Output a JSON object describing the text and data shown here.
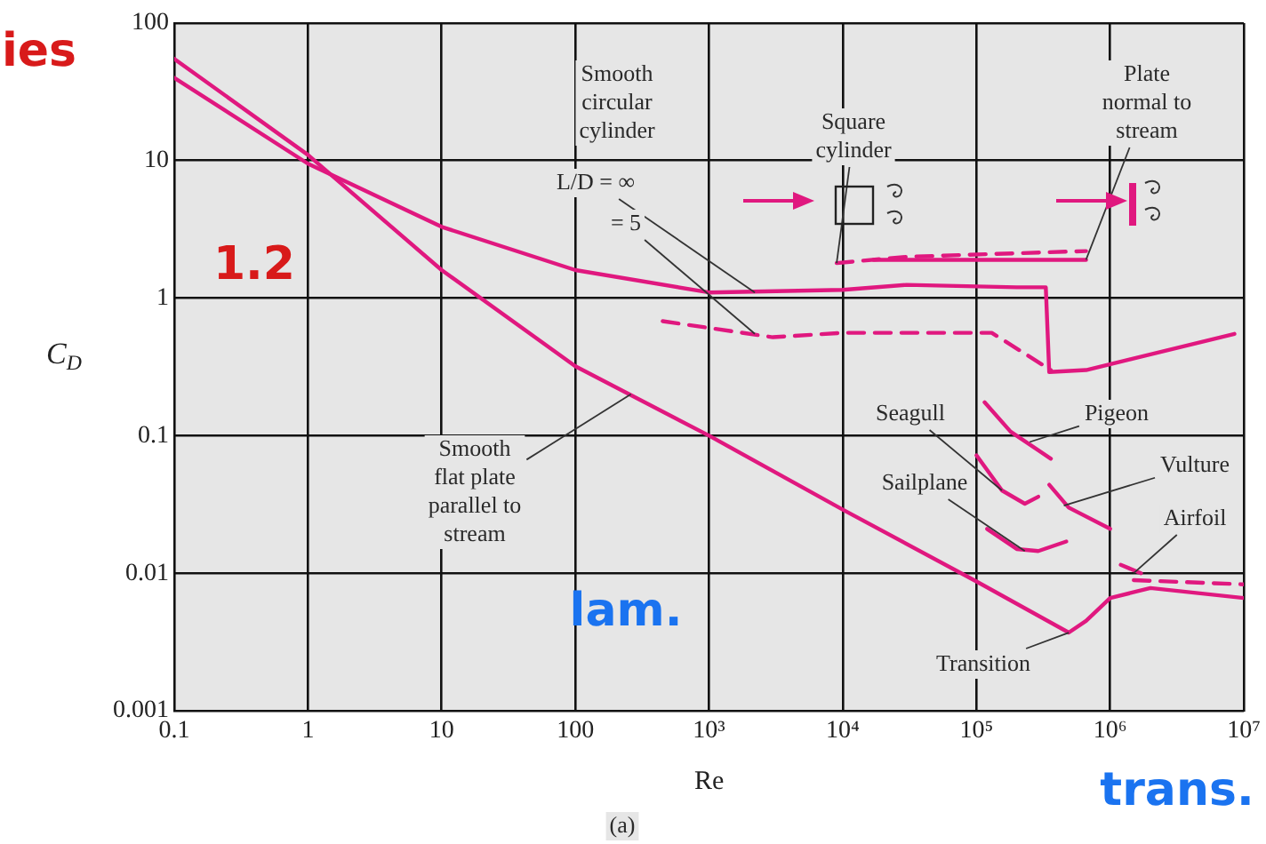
{
  "chart_data": {
    "type": "line",
    "xlabel": "Re",
    "ylabel": "C$_{D}$",
    "log": "xy",
    "grid": true,
    "legend": false,
    "marker": "none",
    "xlim": [
      0.1,
      10000000
    ],
    "ylim": [
      0.001,
      100
    ],
    "xticks": [
      0.1,
      1,
      10,
      100,
      {
        "value": 1000,
        "label": "10³"
      },
      {
        "value": 10000,
        "label": "10⁴"
      },
      {
        "value": 100000,
        "label": "10⁵"
      },
      {
        "value": 1000000,
        "label": "10⁶"
      },
      {
        "value": 10000000,
        "label": "10⁷"
      }
    ],
    "yticks": [
      0.001,
      0.01,
      0.1,
      1,
      10,
      100
    ],
    "series": [
      {
        "color": "#e0187f",
        "line_style": "solid",
        "x": [
          0.1,
          1,
          10,
          100,
          1000,
          10000,
          100000,
          490000,
          660000,
          1000000,
          2000000,
          10000000
        ],
        "values": [
          55,
          11,
          1.6,
          0.32,
          0.1,
          0.029,
          0.0087,
          0.0037,
          0.0045,
          0.0066,
          0.0078,
          0.0066
        ]
      },
      {
        "color": "#e0187f",
        "line_style": "solid",
        "x": [
          0.1,
          1,
          10,
          100,
          1000,
          10000,
          30000,
          200000,
          330000,
          350000,
          660000,
          8500000
        ],
        "values": [
          40,
          9.5,
          3.3,
          1.6,
          1.1,
          1.15,
          1.25,
          1.2,
          1.2,
          0.29,
          0.3,
          0.55
        ]
      },
      {
        "color": "#e0187f",
        "line_style": "dashed",
        "x": [
          450,
          3000,
          10000,
          130000,
          360000
        ],
        "values": [
          0.68,
          0.52,
          0.56,
          0.56,
          0.3
        ]
      },
      {
        "color": "#e0187f",
        "line_style": "dashed",
        "x": [
          9000,
          30000,
          660000
        ],
        "values": [
          1.8,
          2.0,
          2.2
        ]
      },
      {
        "color": "#e0187f",
        "line_style": "solid",
        "x": [
          17000,
          660000
        ],
        "values": [
          1.9,
          1.9
        ]
      },
      {
        "color": "#e0187f",
        "line_style": "solid",
        "x": [
          115000,
          180000,
          360000
        ],
        "values": [
          0.175,
          0.107,
          0.068
        ]
      },
      {
        "color": "#e0187f",
        "line_style": "solid",
        "x": [
          100000,
          155000,
          230000,
          290000
        ],
        "values": [
          0.072,
          0.04,
          0.032,
          0.036
        ]
      },
      {
        "color": "#e0187f",
        "line_style": "solid",
        "x": [
          350000,
          490000,
          1000000
        ],
        "values": [
          0.044,
          0.03,
          0.021
        ]
      },
      {
        "color": "#e0187f",
        "line_style": "solid",
        "x": [
          120000,
          200000,
          290000,
          470000
        ],
        "values": [
          0.021,
          0.015,
          0.0145,
          0.017
        ]
      },
      {
        "color": "#e0187f",
        "line_style": "solid",
        "x": [
          1200000,
          1700000
        ],
        "values": [
          0.0115,
          0.01
        ]
      },
      {
        "color": "#e0187f",
        "line_style": "dashed",
        "x": [
          1500000,
          10000000
        ],
        "values": [
          0.0089,
          0.0083
        ]
      }
    ],
    "annotations": [
      "Smooth circular cylinder",
      {
        "text": "L/D = ∞",
        "x": 2200,
        "y": 1.1
      },
      {
        "text": "= 5",
        "x": 2200,
        "y": 0.55
      },
      {
        "text": "Square cylinder",
        "x": 9000,
        "y": 1.8
      },
      {
        "text": "Plate normal to stream",
        "x": 660000,
        "y": 1.9
      },
      {
        "text": "Smooth flat plate parallel to stream",
        "x": 260,
        "y": 0.2
      },
      {
        "text": "Seagull",
        "x": 155000,
        "y": 0.04
      },
      {
        "text": "Sailplane",
        "x": 230000,
        "y": 0.0145
      },
      {
        "text": "Pigeon",
        "x": 250000,
        "y": 0.09
      },
      {
        "text": "Vulture",
        "x": 450000,
        "y": 0.031
      },
      {
        "text": "Airfoil",
        "x": 1500000,
        "y": 0.01
      },
      {
        "text": "Transition",
        "x": 490000,
        "y": 0.0037
      },
      "(a)",
      "1.2",
      "lam.",
      "trans.",
      "ies"
    ]
  }
}
